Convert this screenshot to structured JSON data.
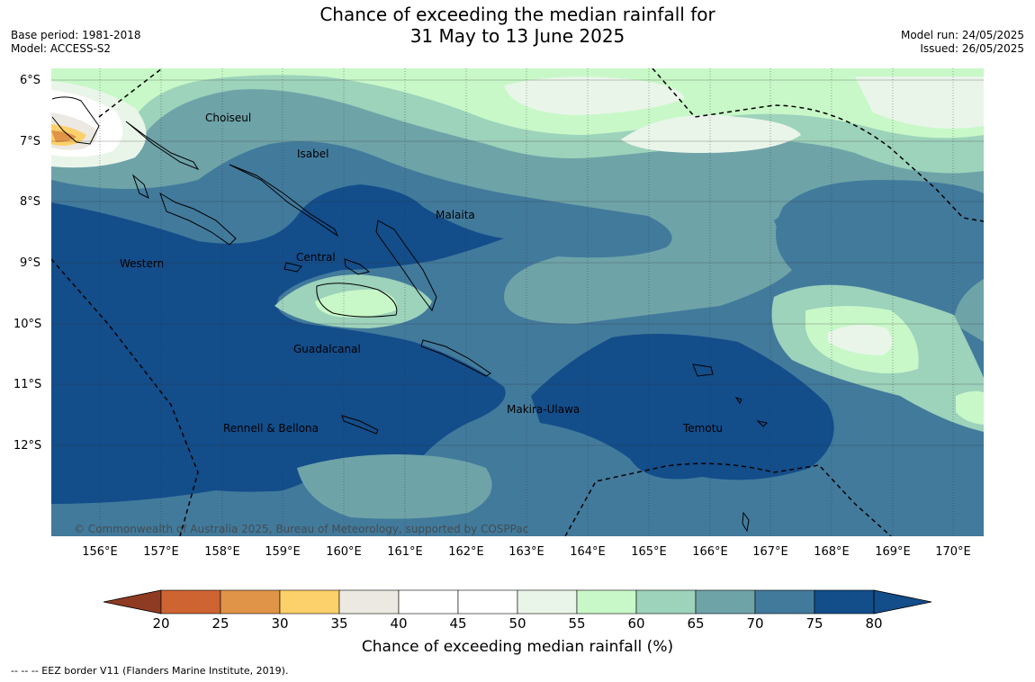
{
  "header": {
    "title_line1": "Chance of exceeding the median rainfall for",
    "title_line2": "31 May to 13 June 2025",
    "base_period": "Base period: 1981-2018",
    "model": "Model: ACCESS-S2",
    "model_run": "Model run: 24/05/2025",
    "issued": "Issued: 26/05/2025"
  },
  "map": {
    "lat_labels": [
      "6°S",
      "7°S",
      "8°S",
      "9°S",
      "10°S",
      "11°S",
      "12°S"
    ],
    "lon_labels": [
      "156°E",
      "157°E",
      "158°E",
      "159°E",
      "160°E",
      "161°E",
      "162°E",
      "163°E",
      "164°E",
      "165°E",
      "166°E",
      "167°E",
      "168°E",
      "169°E",
      "170°E"
    ],
    "provinces": [
      "Choiseul",
      "Isabel",
      "Malaita",
      "Western",
      "Central",
      "Guadalcanal",
      "Makira-Ulawa",
      "Rennell & Bellona",
      "Temotu"
    ],
    "copyright": "© Commonwealth of Australia 2025, Bureau of Meteorology, supported by COSPPac"
  },
  "colorbar": {
    "ticks": [
      "20",
      "25",
      "30",
      "35",
      "40",
      "45",
      "50",
      "55",
      "60",
      "65",
      "70",
      "75",
      "80"
    ],
    "colors": [
      "#b04a26",
      "#cd6432",
      "#e09448",
      "#fcd06a",
      "#ece9e3",
      "#ffffff",
      "#ffffff",
      "#eaf5ea",
      "#c8f8c8",
      "#9dd2bb",
      "#6ea3a8",
      "#427a9c",
      "#134d8a"
    ],
    "label": "Chance of exceeding median rainfall (%)"
  },
  "footnote": "--  --  -- EEZ border V11 (Flanders Marine Institute, 2019)."
}
